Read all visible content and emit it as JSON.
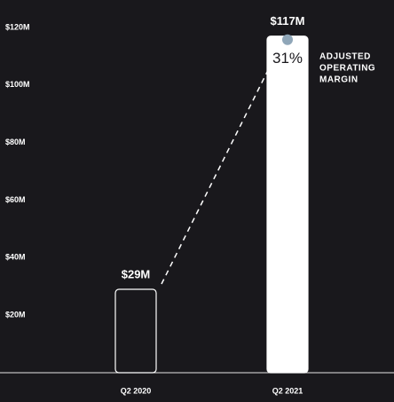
{
  "chart_data": {
    "type": "bar",
    "categories": [
      "Q2 2020",
      "Q2 2021"
    ],
    "values": [
      29,
      117
    ],
    "value_labels": [
      "$29M",
      "$117M"
    ],
    "bar_styles": [
      "outline",
      "filled"
    ],
    "color": "#ffffff",
    "ylim": [
      0,
      120
    ],
    "yticks": [
      {
        "value": 20,
        "label": "$20M"
      },
      {
        "value": 40,
        "label": "$40M"
      },
      {
        "value": 60,
        "label": "$60M"
      },
      {
        "value": 80,
        "label": "$80M"
      },
      {
        "value": 100,
        "label": "$100M"
      },
      {
        "value": 120,
        "label": "$120M"
      }
    ],
    "grid": false,
    "inner_label": "31%",
    "annotation_lines": [
      "ADJUSTED",
      "OPERATING",
      "MARGIN"
    ]
  }
}
